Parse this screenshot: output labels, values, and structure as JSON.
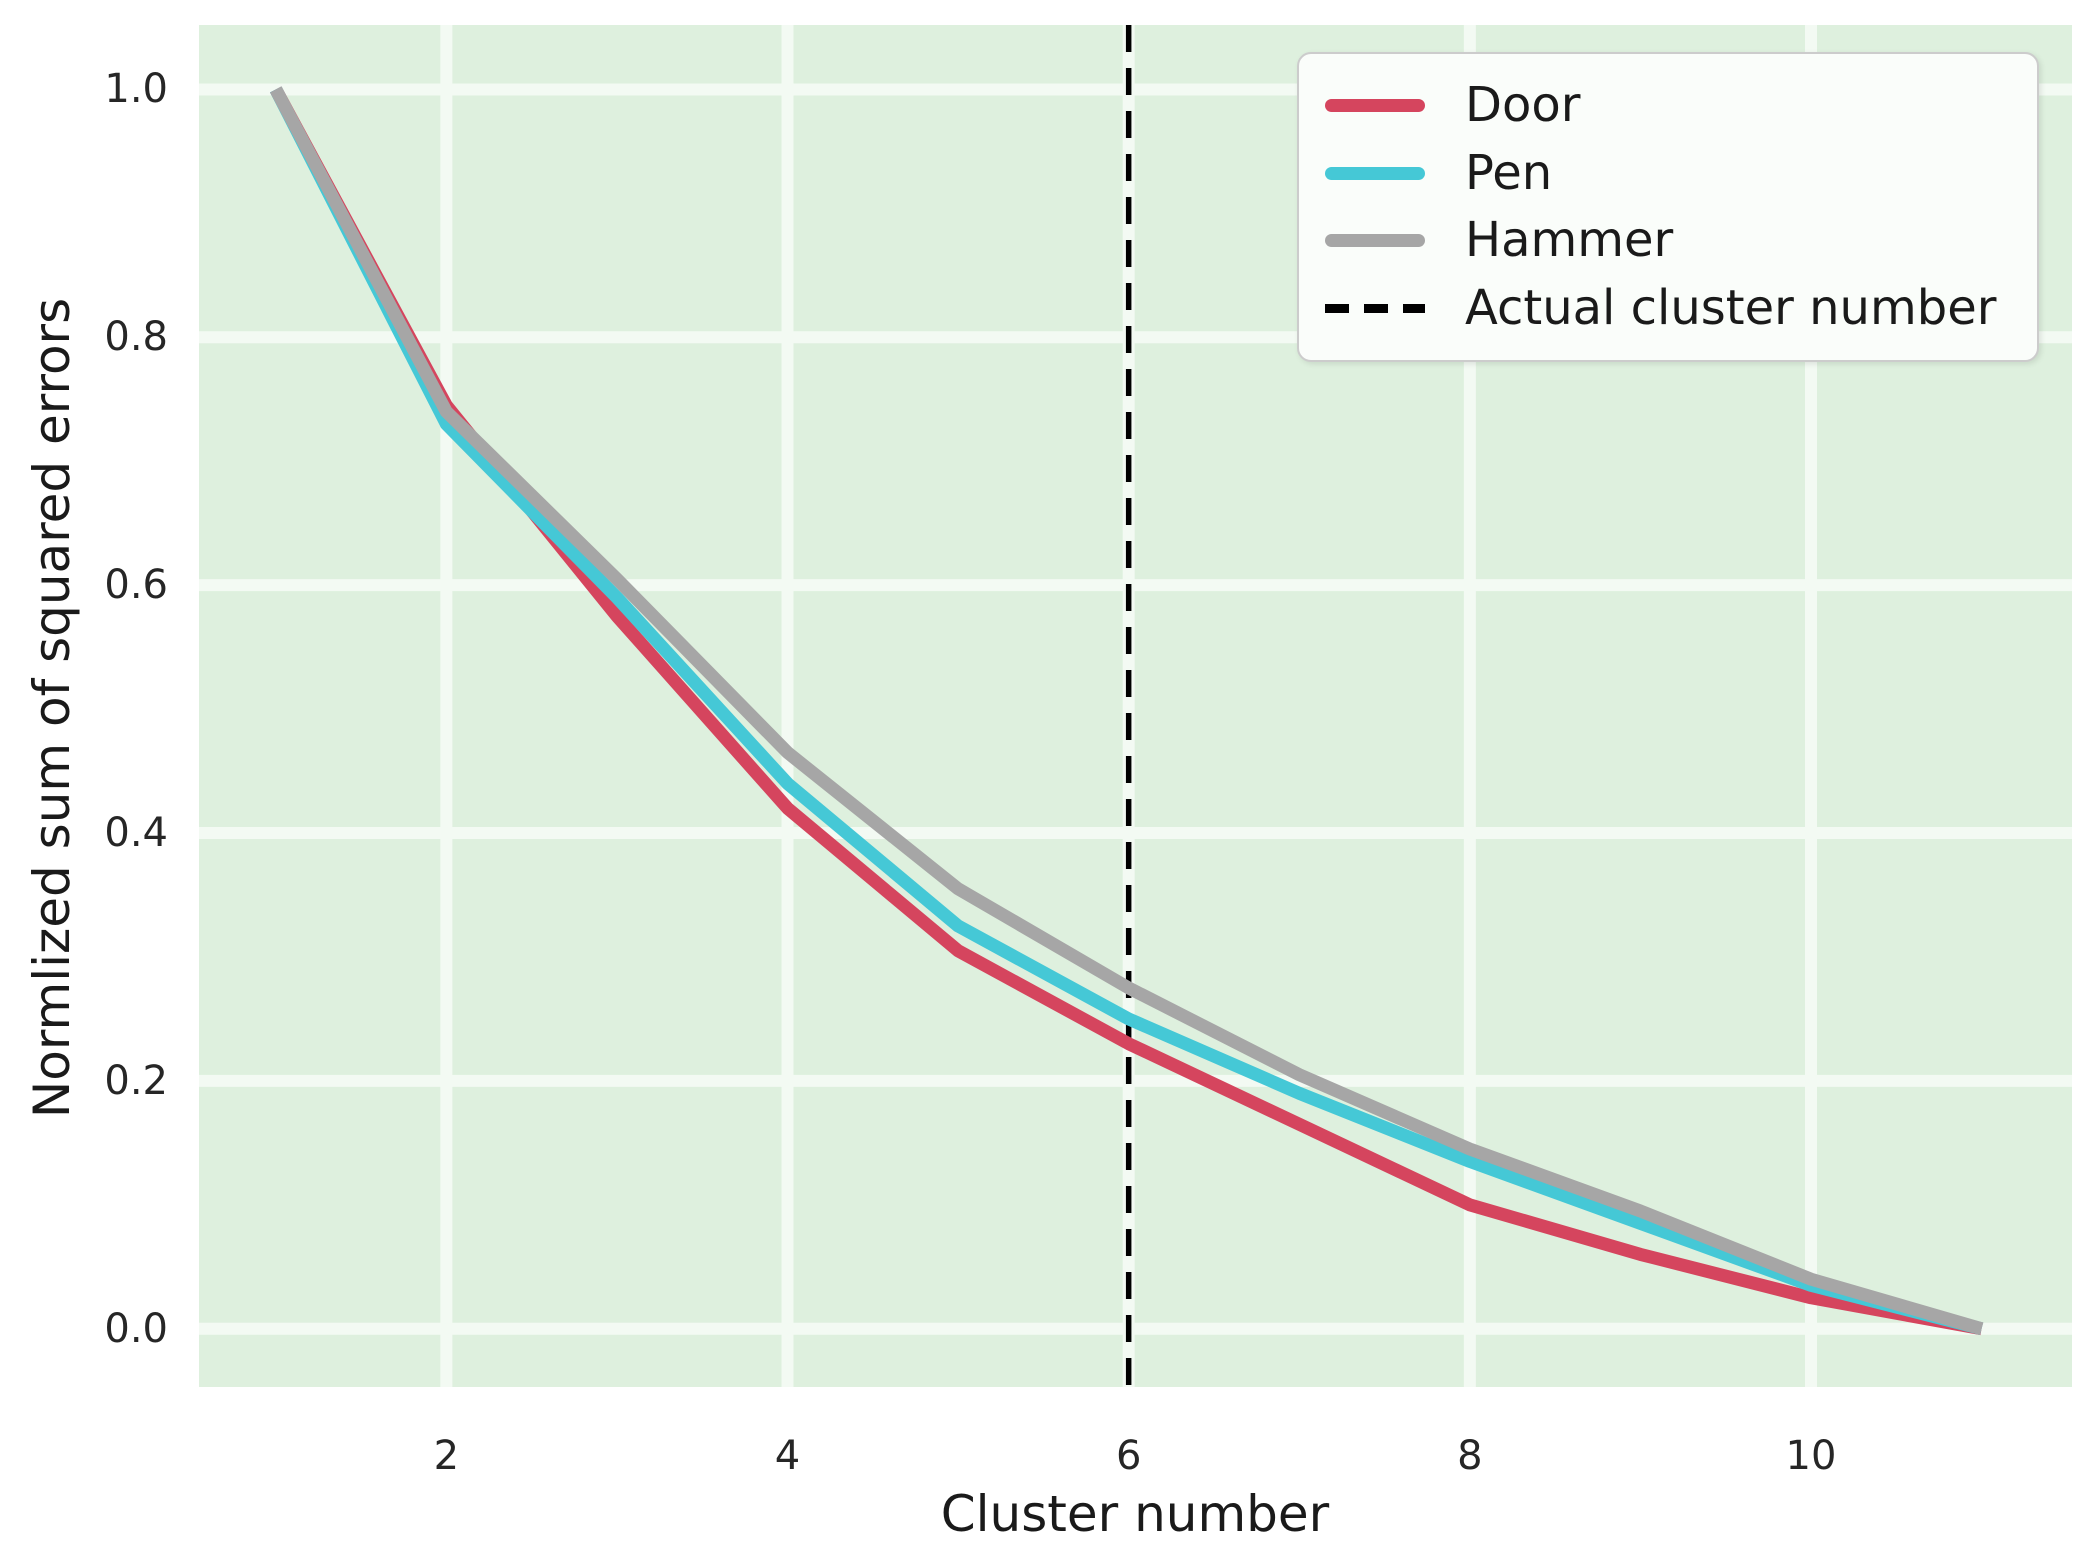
{
  "chart_data": {
    "type": "line",
    "x": [
      1,
      2,
      3,
      4,
      5,
      6,
      7,
      8,
      9,
      10,
      11
    ],
    "series": [
      {
        "name": "Door",
        "color": "#d5455e",
        "values": [
          1.0,
          0.745,
          0.575,
          0.42,
          0.305,
          0.23,
          0.165,
          0.1,
          0.06,
          0.025,
          0.0
        ]
      },
      {
        "name": "Pen",
        "color": "#45c8d6",
        "values": [
          1.0,
          0.73,
          0.59,
          0.44,
          0.325,
          0.25,
          0.19,
          0.135,
          0.085,
          0.035,
          0.0
        ]
      },
      {
        "name": "Hammer",
        "color": "#a6a6a6",
        "values": [
          1.0,
          0.74,
          0.605,
          0.465,
          0.355,
          0.275,
          0.205,
          0.145,
          0.095,
          0.04,
          0.0
        ]
      }
    ],
    "vline": {
      "x": 6,
      "label": "Actual cluster number",
      "color": "#000000",
      "style": "dashed"
    },
    "xlabel": "Cluster number",
    "ylabel": "Normlized sum of squared errors",
    "xticks": [
      2,
      4,
      6,
      8,
      10
    ],
    "ytick_labels": [
      "0.0",
      "0.2",
      "0.4",
      "0.6",
      "0.8",
      "1.0"
    ],
    "xlim": [
      0.55,
      11.53
    ],
    "ylim": [
      -0.047,
      1.052
    ],
    "grid": true,
    "legend_position": "upper right",
    "colors": {
      "plot_background": "#def0de",
      "gridline": "#f3faf3",
      "figure_background": "#ffffff",
      "tick_text": "#262626",
      "vline": "#000000"
    }
  }
}
